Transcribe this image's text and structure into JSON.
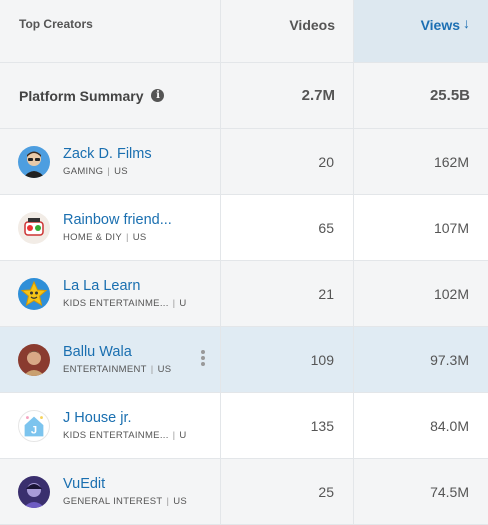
{
  "header": {
    "creators_label": "Top Creators",
    "videos_label": "Videos",
    "views_label": "Views",
    "sort_arrow": "↓"
  },
  "summary": {
    "label": "Platform Summary",
    "info_glyph": "i",
    "videos": "2.7M",
    "views": "25.5B"
  },
  "creators": [
    {
      "name": "Zack D. Films",
      "category": "GAMING",
      "country": "US",
      "videos": "20",
      "views": "162M",
      "avatar_color": "#4d9ee0",
      "icon": "person-face-icon"
    },
    {
      "name": "Rainbow friend...",
      "category": "HOME & DIY",
      "country": "US",
      "videos": "65",
      "views": "107M",
      "avatar_color": "#f2ece6",
      "icon": "rainbow-friends-icon"
    },
    {
      "name": "La La Learn",
      "category": "KIDS ENTERTAINME...",
      "country": "U",
      "videos": "21",
      "views": "102M",
      "avatar_color": "#2f8fd8",
      "icon": "star-character-icon"
    },
    {
      "name": "Ballu Wala",
      "category": "ENTERTAINMENT",
      "country": "US",
      "videos": "109",
      "views": "97.3M",
      "avatar_color": "#8a3b2f",
      "icon": "person-face-icon"
    },
    {
      "name": "J House jr.",
      "category": "KIDS ENTERTAINME...",
      "country": "U",
      "videos": "135",
      "views": "84.0M",
      "avatar_color": "#ffffff",
      "icon": "house-j-icon"
    },
    {
      "name": "VuEdit",
      "category": "GENERAL INTEREST",
      "country": "US",
      "videos": "25",
      "views": "74.5M",
      "avatar_color": "#3a2f6e",
      "icon": "person-face-icon"
    }
  ]
}
